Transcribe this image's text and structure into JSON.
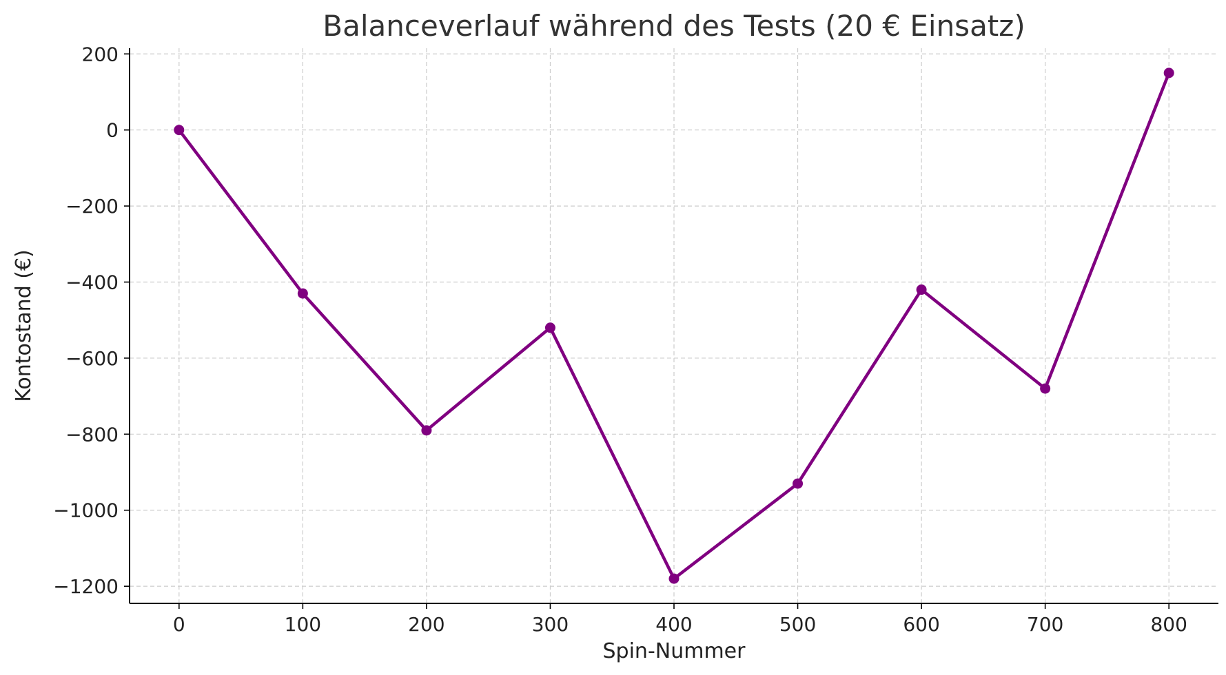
{
  "chart_data": {
    "type": "line",
    "title": "Balanceverlauf während des Tests (20 € Einsatz)",
    "xlabel": "Spin-Nummer",
    "ylabel": "Kontostand (€)",
    "x": [
      0,
      100,
      200,
      300,
      400,
      500,
      600,
      700,
      800
    ],
    "series": [
      {
        "values": [
          0,
          -430,
          -790,
          -520,
          -1180,
          -930,
          -420,
          -680,
          150
        ],
        "color": "#800080",
        "marker": "circle"
      }
    ],
    "x_ticks": [
      0,
      100,
      200,
      300,
      400,
      500,
      600,
      700,
      800
    ],
    "x_tick_labels": [
      "0",
      "100",
      "200",
      "300",
      "400",
      "500",
      "600",
      "700",
      "800"
    ],
    "y_ticks": [
      200,
      0,
      -200,
      -400,
      -600,
      -800,
      -1000,
      -1200
    ],
    "y_tick_labels": [
      "200",
      "0",
      "−200",
      "−400",
      "−600",
      "−800",
      "−1000",
      "−1200"
    ],
    "xlim": [
      -40,
      840
    ],
    "ylim": [
      -1245,
      215
    ],
    "grid": true,
    "legend": "none"
  }
}
